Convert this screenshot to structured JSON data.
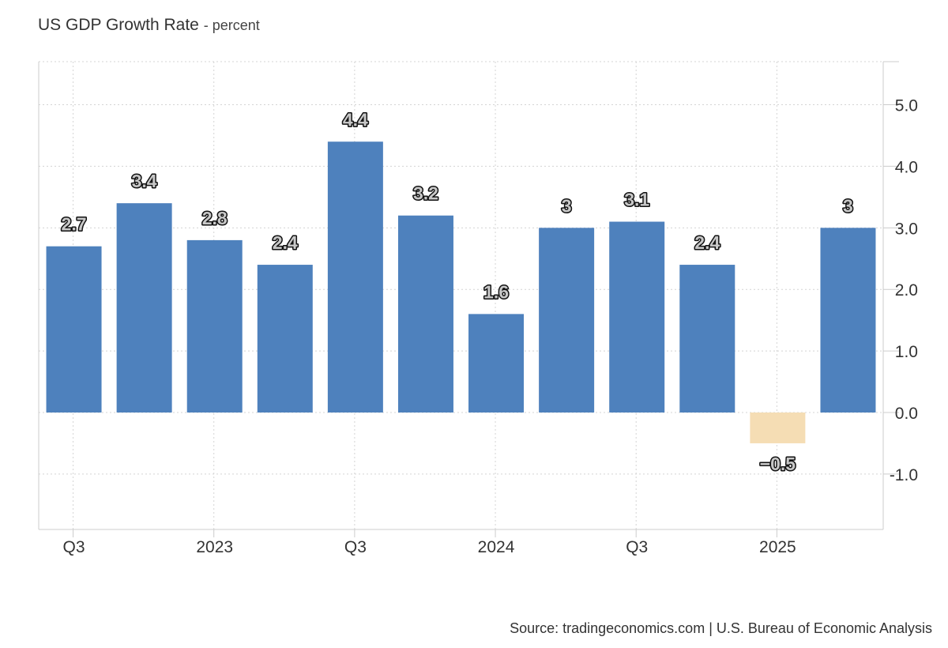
{
  "header": {
    "title": "US GDP Growth Rate",
    "unit": "- percent"
  },
  "footer": {
    "source": "Source: tradingeconomics.com | U.S. Bureau of Economic Analysis"
  },
  "colors": {
    "positive": "#4e81bd",
    "negative": "#f5ddb4",
    "grid": "#d4d4d4"
  },
  "chart_data": {
    "type": "bar",
    "title": "US GDP Growth Rate",
    "ylabel": "percent",
    "xlabel": "",
    "ylim": [
      -1.9,
      5.7
    ],
    "yaxis_side": "right",
    "grid": true,
    "yticks": [
      -1.0,
      0.0,
      1.0,
      2.0,
      3.0,
      4.0,
      5.0
    ],
    "ytick_labels": [
      "-1.0",
      "0.0",
      "1.0",
      "2.0",
      "3.0",
      "4.0",
      "5.0"
    ],
    "values": [
      2.7,
      3.4,
      2.8,
      2.4,
      4.4,
      3.2,
      1.6,
      3.0,
      3.1,
      2.4,
      -0.5,
      3.0
    ],
    "value_labels": [
      "2.7",
      "3.4",
      "2.8",
      "2.4",
      "4.4",
      "3.2",
      "1.6",
      "3",
      "3.1",
      "2.4",
      "−0.5",
      "3"
    ],
    "xtick_labels": [
      {
        "after_bar": 0,
        "label": "Q3"
      },
      {
        "after_bar": 2,
        "label": "2023"
      },
      {
        "after_bar": 4,
        "label": "Q3"
      },
      {
        "after_bar": 6,
        "label": "2024"
      },
      {
        "after_bar": 8,
        "label": "Q3"
      },
      {
        "after_bar": 10,
        "label": "2025"
      }
    ]
  }
}
